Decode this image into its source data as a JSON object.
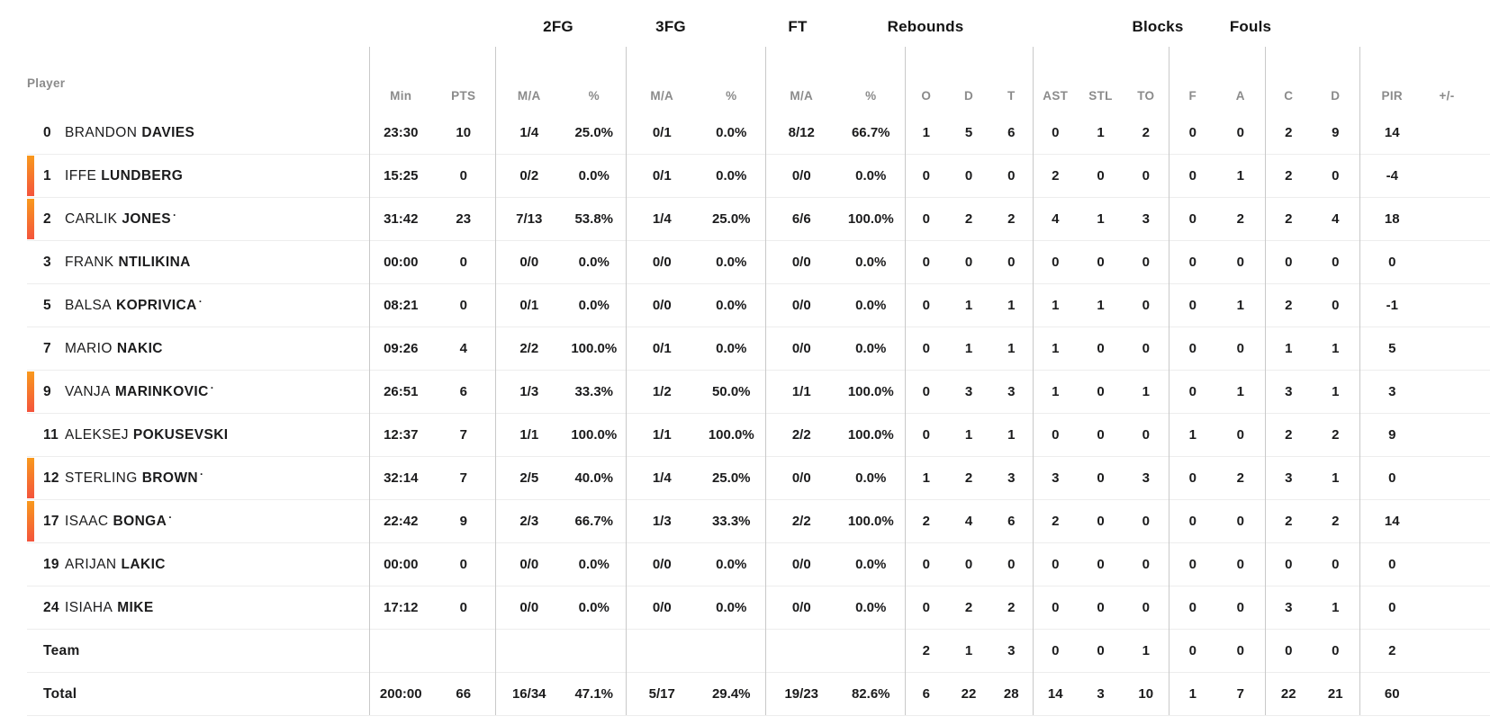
{
  "table": {
    "player_col_label": "Player",
    "groups": {
      "fg2": "2FG",
      "fg3": "3FG",
      "ft": "FT",
      "rebounds": "Rebounds",
      "blocks": "Blocks",
      "fouls": "Fouls"
    },
    "subheaders": {
      "min": "Min",
      "pts": "PTS",
      "ma": "M/A",
      "pct": "%",
      "reb_o": "O",
      "reb_d": "D",
      "reb_t": "T",
      "ast": "AST",
      "stl": "STL",
      "to": "TO",
      "blk_f": "F",
      "blk_a": "A",
      "foul_c": "C",
      "foul_d": "D",
      "pir": "PIR",
      "plus_minus": "+/-"
    },
    "colors": {
      "on_court_bar_top": "#f8991d",
      "on_court_bar_bottom": "#f4543c"
    },
    "rows": [
      {
        "number": "0",
        "first_name": "BRANDON",
        "last_name": "DAVIES",
        "starter_mark": "",
        "on_court": false,
        "min": "23:30",
        "pts": "10",
        "fg2_ma": "1/4",
        "fg2_pct": "25.0%",
        "fg3_ma": "0/1",
        "fg3_pct": "0.0%",
        "ft_ma": "8/12",
        "ft_pct": "66.7%",
        "reb_o": "1",
        "reb_d": "5",
        "reb_t": "6",
        "ast": "0",
        "stl": "1",
        "to": "2",
        "blk_f": "0",
        "blk_a": "0",
        "foul_c": "2",
        "foul_d": "9",
        "pir": "14",
        "plus_minus": ""
      },
      {
        "number": "1",
        "first_name": "IFFE",
        "last_name": "LUNDBERG",
        "starter_mark": "",
        "on_court": true,
        "min": "15:25",
        "pts": "0",
        "fg2_ma": "0/2",
        "fg2_pct": "0.0%",
        "fg3_ma": "0/1",
        "fg3_pct": "0.0%",
        "ft_ma": "0/0",
        "ft_pct": "0.0%",
        "reb_o": "0",
        "reb_d": "0",
        "reb_t": "0",
        "ast": "2",
        "stl": "0",
        "to": "0",
        "blk_f": "0",
        "blk_a": "1",
        "foul_c": "2",
        "foul_d": "0",
        "pir": "-4",
        "plus_minus": ""
      },
      {
        "number": "2",
        "first_name": "CARLIK",
        "last_name": "JONES",
        "starter_mark": "·",
        "on_court": true,
        "min": "31:42",
        "pts": "23",
        "fg2_ma": "7/13",
        "fg2_pct": "53.8%",
        "fg3_ma": "1/4",
        "fg3_pct": "25.0%",
        "ft_ma": "6/6",
        "ft_pct": "100.0%",
        "reb_o": "0",
        "reb_d": "2",
        "reb_t": "2",
        "ast": "4",
        "stl": "1",
        "to": "3",
        "blk_f": "0",
        "blk_a": "2",
        "foul_c": "2",
        "foul_d": "4",
        "pir": "18",
        "plus_minus": ""
      },
      {
        "number": "3",
        "first_name": "FRANK",
        "last_name": "NTILIKINA",
        "starter_mark": "",
        "on_court": false,
        "min": "00:00",
        "pts": "0",
        "fg2_ma": "0/0",
        "fg2_pct": "0.0%",
        "fg3_ma": "0/0",
        "fg3_pct": "0.0%",
        "ft_ma": "0/0",
        "ft_pct": "0.0%",
        "reb_o": "0",
        "reb_d": "0",
        "reb_t": "0",
        "ast": "0",
        "stl": "0",
        "to": "0",
        "blk_f": "0",
        "blk_a": "0",
        "foul_c": "0",
        "foul_d": "0",
        "pir": "0",
        "plus_minus": ""
      },
      {
        "number": "5",
        "first_name": "BALSA",
        "last_name": "KOPRIVICA",
        "starter_mark": "·",
        "on_court": false,
        "min": "08:21",
        "pts": "0",
        "fg2_ma": "0/1",
        "fg2_pct": "0.0%",
        "fg3_ma": "0/0",
        "fg3_pct": "0.0%",
        "ft_ma": "0/0",
        "ft_pct": "0.0%",
        "reb_o": "0",
        "reb_d": "1",
        "reb_t": "1",
        "ast": "1",
        "stl": "1",
        "to": "0",
        "blk_f": "0",
        "blk_a": "1",
        "foul_c": "2",
        "foul_d": "0",
        "pir": "-1",
        "plus_minus": ""
      },
      {
        "number": "7",
        "first_name": "MARIO",
        "last_name": "NAKIC",
        "starter_mark": "",
        "on_court": false,
        "min": "09:26",
        "pts": "4",
        "fg2_ma": "2/2",
        "fg2_pct": "100.0%",
        "fg3_ma": "0/1",
        "fg3_pct": "0.0%",
        "ft_ma": "0/0",
        "ft_pct": "0.0%",
        "reb_o": "0",
        "reb_d": "1",
        "reb_t": "1",
        "ast": "1",
        "stl": "0",
        "to": "0",
        "blk_f": "0",
        "blk_a": "0",
        "foul_c": "1",
        "foul_d": "1",
        "pir": "5",
        "plus_minus": ""
      },
      {
        "number": "9",
        "first_name": "VANJA",
        "last_name": "MARINKOVIC",
        "starter_mark": "·",
        "on_court": true,
        "min": "26:51",
        "pts": "6",
        "fg2_ma": "1/3",
        "fg2_pct": "33.3%",
        "fg3_ma": "1/2",
        "fg3_pct": "50.0%",
        "ft_ma": "1/1",
        "ft_pct": "100.0%",
        "reb_o": "0",
        "reb_d": "3",
        "reb_t": "3",
        "ast": "1",
        "stl": "0",
        "to": "1",
        "blk_f": "0",
        "blk_a": "1",
        "foul_c": "3",
        "foul_d": "1",
        "pir": "3",
        "plus_minus": ""
      },
      {
        "number": "11",
        "first_name": "ALEKSEJ",
        "last_name": "POKUSEVSKI",
        "starter_mark": "",
        "on_court": false,
        "min": "12:37",
        "pts": "7",
        "fg2_ma": "1/1",
        "fg2_pct": "100.0%",
        "fg3_ma": "1/1",
        "fg3_pct": "100.0%",
        "ft_ma": "2/2",
        "ft_pct": "100.0%",
        "reb_o": "0",
        "reb_d": "1",
        "reb_t": "1",
        "ast": "0",
        "stl": "0",
        "to": "0",
        "blk_f": "1",
        "blk_a": "0",
        "foul_c": "2",
        "foul_d": "2",
        "pir": "9",
        "plus_minus": ""
      },
      {
        "number": "12",
        "first_name": "STERLING",
        "last_name": "BROWN",
        "starter_mark": "·",
        "on_court": true,
        "min": "32:14",
        "pts": "7",
        "fg2_ma": "2/5",
        "fg2_pct": "40.0%",
        "fg3_ma": "1/4",
        "fg3_pct": "25.0%",
        "ft_ma": "0/0",
        "ft_pct": "0.0%",
        "reb_o": "1",
        "reb_d": "2",
        "reb_t": "3",
        "ast": "3",
        "stl": "0",
        "to": "3",
        "blk_f": "0",
        "blk_a": "2",
        "foul_c": "3",
        "foul_d": "1",
        "pir": "0",
        "plus_minus": ""
      },
      {
        "number": "17",
        "first_name": "ISAAC",
        "last_name": "BONGA",
        "starter_mark": "·",
        "on_court": true,
        "min": "22:42",
        "pts": "9",
        "fg2_ma": "2/3",
        "fg2_pct": "66.7%",
        "fg3_ma": "1/3",
        "fg3_pct": "33.3%",
        "ft_ma": "2/2",
        "ft_pct": "100.0%",
        "reb_o": "2",
        "reb_d": "4",
        "reb_t": "6",
        "ast": "2",
        "stl": "0",
        "to": "0",
        "blk_f": "0",
        "blk_a": "0",
        "foul_c": "2",
        "foul_d": "2",
        "pir": "14",
        "plus_minus": ""
      },
      {
        "number": "19",
        "first_name": "ARIJAN",
        "last_name": "LAKIC",
        "starter_mark": "",
        "on_court": false,
        "min": "00:00",
        "pts": "0",
        "fg2_ma": "0/0",
        "fg2_pct": "0.0%",
        "fg3_ma": "0/0",
        "fg3_pct": "0.0%",
        "ft_ma": "0/0",
        "ft_pct": "0.0%",
        "reb_o": "0",
        "reb_d": "0",
        "reb_t": "0",
        "ast": "0",
        "stl": "0",
        "to": "0",
        "blk_f": "0",
        "blk_a": "0",
        "foul_c": "0",
        "foul_d": "0",
        "pir": "0",
        "plus_minus": ""
      },
      {
        "number": "24",
        "first_name": "ISIAHA",
        "last_name": "MIKE",
        "starter_mark": "",
        "on_court": false,
        "min": "17:12",
        "pts": "0",
        "fg2_ma": "0/0",
        "fg2_pct": "0.0%",
        "fg3_ma": "0/0",
        "fg3_pct": "0.0%",
        "ft_ma": "0/0",
        "ft_pct": "0.0%",
        "reb_o": "0",
        "reb_d": "2",
        "reb_t": "2",
        "ast": "0",
        "stl": "0",
        "to": "0",
        "blk_f": "0",
        "blk_a": "0",
        "foul_c": "3",
        "foul_d": "1",
        "pir": "0",
        "plus_minus": ""
      }
    ],
    "team_row": {
      "label": "Team",
      "min": "",
      "pts": "",
      "fg2_ma": "",
      "fg2_pct": "",
      "fg3_ma": "",
      "fg3_pct": "",
      "ft_ma": "",
      "ft_pct": "",
      "reb_o": "2",
      "reb_d": "1",
      "reb_t": "3",
      "ast": "0",
      "stl": "0",
      "to": "1",
      "blk_f": "0",
      "blk_a": "0",
      "foul_c": "0",
      "foul_d": "0",
      "pir": "2",
      "plus_minus": ""
    },
    "total_row": {
      "label": "Total",
      "min": "200:00",
      "pts": "66",
      "fg2_ma": "16/34",
      "fg2_pct": "47.1%",
      "fg3_ma": "5/17",
      "fg3_pct": "29.4%",
      "ft_ma": "19/23",
      "ft_pct": "82.6%",
      "reb_o": "6",
      "reb_d": "22",
      "reb_t": "28",
      "ast": "14",
      "stl": "3",
      "to": "10",
      "blk_f": "1",
      "blk_a": "7",
      "foul_c": "22",
      "foul_d": "21",
      "pir": "60",
      "plus_minus": ""
    }
  }
}
